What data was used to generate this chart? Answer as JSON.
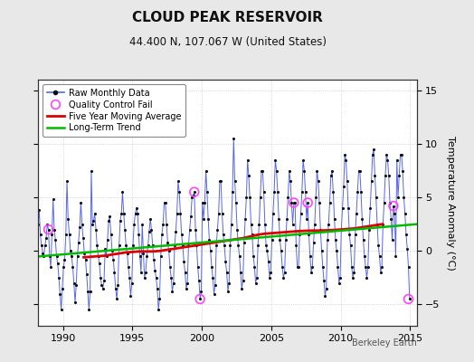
{
  "title": "CLOUD PEAK RESERVOIR",
  "subtitle": "44.400 N, 107.067 W (United States)",
  "ylabel_right": "Temperature Anomaly (°C)",
  "watermark": "Berkeley Earth",
  "xlim": [
    1988.2,
    2015.5
  ],
  "ylim": [
    -7,
    16
  ],
  "yticks": [
    -5,
    0,
    5,
    10,
    15
  ],
  "xticks": [
    1990,
    1995,
    2000,
    2005,
    2010,
    2015
  ],
  "bg_color": "#e8e8e8",
  "plot_bg_color": "#ffffff",
  "raw_color": "#5566ee",
  "raw_marker_color": "#111111",
  "qc_color": "#ff44ff",
  "moving_avg_color": "#dd0000",
  "trend_color": "#00bb00",
  "raw_monthly": [
    [
      1988.042,
      2.8
    ],
    [
      1988.125,
      1.8
    ],
    [
      1988.208,
      2.5
    ],
    [
      1988.292,
      3.8
    ],
    [
      1988.375,
      1.5
    ],
    [
      1988.458,
      0.5
    ],
    [
      1988.542,
      -0.2
    ],
    [
      1988.625,
      -0.5
    ],
    [
      1988.708,
      0.5
    ],
    [
      1988.792,
      1.2
    ],
    [
      1988.875,
      2.5
    ],
    [
      1988.958,
      2.0
    ],
    [
      1989.042,
      -0.5
    ],
    [
      1989.125,
      -1.5
    ],
    [
      1989.208,
      1.5
    ],
    [
      1989.292,
      4.8
    ],
    [
      1989.375,
      2.0
    ],
    [
      1989.458,
      1.0
    ],
    [
      1989.542,
      -0.5
    ],
    [
      1989.625,
      -1.2
    ],
    [
      1989.708,
      -2.5
    ],
    [
      1989.792,
      -4.0
    ],
    [
      1989.875,
      -5.5
    ],
    [
      1989.958,
      -3.5
    ],
    [
      1990.042,
      -1.5
    ],
    [
      1990.125,
      -0.8
    ],
    [
      1990.208,
      1.5
    ],
    [
      1990.292,
      6.5
    ],
    [
      1990.375,
      3.0
    ],
    [
      1990.458,
      1.5
    ],
    [
      1990.542,
      0.0
    ],
    [
      1990.625,
      -0.5
    ],
    [
      1990.708,
      -1.5
    ],
    [
      1990.792,
      -3.0
    ],
    [
      1990.875,
      -4.8
    ],
    [
      1990.958,
      -3.2
    ],
    [
      1991.042,
      -0.5
    ],
    [
      1991.125,
      0.8
    ],
    [
      1991.208,
      2.2
    ],
    [
      1991.292,
      4.5
    ],
    [
      1991.375,
      2.5
    ],
    [
      1991.458,
      1.2
    ],
    [
      1991.542,
      -0.2
    ],
    [
      1991.625,
      -0.8
    ],
    [
      1991.708,
      -2.2
    ],
    [
      1991.792,
      -3.8
    ],
    [
      1991.875,
      -5.5
    ],
    [
      1991.958,
      -3.8
    ],
    [
      1992.042,
      7.5
    ],
    [
      1992.125,
      2.5
    ],
    [
      1992.208,
      2.8
    ],
    [
      1992.292,
      3.5
    ],
    [
      1992.375,
      2.0
    ],
    [
      1992.458,
      0.5
    ],
    [
      1992.542,
      -0.5
    ],
    [
      1992.625,
      -1.2
    ],
    [
      1992.708,
      -2.5
    ],
    [
      1992.792,
      -3.2
    ],
    [
      1992.875,
      -3.5
    ],
    [
      1992.958,
      -2.8
    ],
    [
      1993.042,
      0.2
    ],
    [
      1993.125,
      -0.5
    ],
    [
      1993.208,
      1.0
    ],
    [
      1993.292,
      2.8
    ],
    [
      1993.375,
      3.2
    ],
    [
      1993.458,
      1.5
    ],
    [
      1993.542,
      0.0
    ],
    [
      1993.625,
      -0.8
    ],
    [
      1993.708,
      -2.0
    ],
    [
      1993.792,
      -3.5
    ],
    [
      1993.875,
      -4.5
    ],
    [
      1993.958,
      -3.2
    ],
    [
      1994.042,
      0.5
    ],
    [
      1994.125,
      2.8
    ],
    [
      1994.208,
      3.5
    ],
    [
      1994.292,
      5.5
    ],
    [
      1994.375,
      3.5
    ],
    [
      1994.458,
      2.0
    ],
    [
      1994.542,
      0.5
    ],
    [
      1994.625,
      -0.2
    ],
    [
      1994.708,
      -1.5
    ],
    [
      1994.792,
      -2.5
    ],
    [
      1994.875,
      -4.2
    ],
    [
      1994.958,
      -3.0
    ],
    [
      1995.042,
      0.5
    ],
    [
      1995.125,
      2.5
    ],
    [
      1995.208,
      3.5
    ],
    [
      1995.292,
      4.0
    ],
    [
      1995.375,
      3.5
    ],
    [
      1995.458,
      1.5
    ],
    [
      1995.542,
      -0.5
    ],
    [
      1995.625,
      -2.0
    ],
    [
      1995.708,
      2.5
    ],
    [
      1995.792,
      -0.2
    ],
    [
      1995.875,
      -2.5
    ],
    [
      1995.958,
      -2.0
    ],
    [
      1996.042,
      -0.5
    ],
    [
      1996.125,
      0.5
    ],
    [
      1996.208,
      1.8
    ],
    [
      1996.292,
      3.0
    ],
    [
      1996.375,
      2.0
    ],
    [
      1996.458,
      0.5
    ],
    [
      1996.542,
      -0.8
    ],
    [
      1996.625,
      -1.8
    ],
    [
      1996.708,
      -2.5
    ],
    [
      1996.792,
      -3.5
    ],
    [
      1996.875,
      -5.5
    ],
    [
      1996.958,
      -4.5
    ],
    [
      1997.042,
      -0.5
    ],
    [
      1997.125,
      1.5
    ],
    [
      1997.208,
      2.5
    ],
    [
      1997.292,
      4.5
    ],
    [
      1997.375,
      4.5
    ],
    [
      1997.458,
      2.5
    ],
    [
      1997.542,
      0.8
    ],
    [
      1997.625,
      0.0
    ],
    [
      1997.708,
      -1.5
    ],
    [
      1997.792,
      -2.5
    ],
    [
      1997.875,
      -3.8
    ],
    [
      1997.958,
      -3.0
    ],
    [
      1998.042,
      0.5
    ],
    [
      1998.125,
      1.8
    ],
    [
      1998.208,
      3.5
    ],
    [
      1998.292,
      6.5
    ],
    [
      1998.375,
      5.5
    ],
    [
      1998.458,
      3.5
    ],
    [
      1998.542,
      1.5
    ],
    [
      1998.625,
      0.5
    ],
    [
      1998.708,
      -1.0
    ],
    [
      1998.792,
      -2.0
    ],
    [
      1998.875,
      -3.5
    ],
    [
      1998.958,
      -3.0
    ],
    [
      1999.042,
      0.5
    ],
    [
      1999.125,
      2.0
    ],
    [
      1999.208,
      3.2
    ],
    [
      1999.292,
      5.0
    ],
    [
      1999.375,
      5.2
    ],
    [
      1999.458,
      5.5
    ],
    [
      1999.542,
      2.0
    ],
    [
      1999.625,
      0.5
    ],
    [
      1999.708,
      -1.5
    ],
    [
      1999.792,
      -2.8
    ],
    [
      1999.875,
      -4.5
    ],
    [
      1999.958,
      -3.8
    ],
    [
      2000.042,
      4.5
    ],
    [
      2000.125,
      3.0
    ],
    [
      2000.208,
      4.5
    ],
    [
      2000.292,
      7.5
    ],
    [
      2000.375,
      5.5
    ],
    [
      2000.458,
      3.0
    ],
    [
      2000.542,
      1.0
    ],
    [
      2000.625,
      0.0
    ],
    [
      2000.708,
      -1.5
    ],
    [
      2000.792,
      -2.5
    ],
    [
      2000.875,
      -4.0
    ],
    [
      2000.958,
      -3.2
    ],
    [
      2001.042,
      0.5
    ],
    [
      2001.125,
      2.0
    ],
    [
      2001.208,
      3.5
    ],
    [
      2001.292,
      6.5
    ],
    [
      2001.375,
      6.5
    ],
    [
      2001.458,
      3.5
    ],
    [
      2001.542,
      1.5
    ],
    [
      2001.625,
      0.5
    ],
    [
      2001.708,
      -1.0
    ],
    [
      2001.792,
      -2.0
    ],
    [
      2001.875,
      -3.8
    ],
    [
      2001.958,
      -3.0
    ],
    [
      2002.042,
      0.5
    ],
    [
      2002.125,
      2.5
    ],
    [
      2002.208,
      5.5
    ],
    [
      2002.292,
      10.5
    ],
    [
      2002.375,
      6.5
    ],
    [
      2002.458,
      4.5
    ],
    [
      2002.542,
      2.0
    ],
    [
      2002.625,
      0.5
    ],
    [
      2002.708,
      -0.5
    ],
    [
      2002.792,
      -2.0
    ],
    [
      2002.875,
      -3.5
    ],
    [
      2002.958,
      -2.8
    ],
    [
      2003.042,
      0.8
    ],
    [
      2003.125,
      3.0
    ],
    [
      2003.208,
      5.0
    ],
    [
      2003.292,
      8.5
    ],
    [
      2003.375,
      7.0
    ],
    [
      2003.458,
      5.0
    ],
    [
      2003.542,
      2.5
    ],
    [
      2003.625,
      1.5
    ],
    [
      2003.708,
      -0.5
    ],
    [
      2003.792,
      -1.5
    ],
    [
      2003.875,
      -3.0
    ],
    [
      2003.958,
      -2.5
    ],
    [
      2004.042,
      0.5
    ],
    [
      2004.125,
      2.5
    ],
    [
      2004.208,
      5.0
    ],
    [
      2004.292,
      7.5
    ],
    [
      2004.375,
      7.5
    ],
    [
      2004.458,
      5.5
    ],
    [
      2004.542,
      2.5
    ],
    [
      2004.625,
      0.5
    ],
    [
      2004.708,
      0.0
    ],
    [
      2004.792,
      -1.0
    ],
    [
      2004.875,
      -2.5
    ],
    [
      2004.958,
      -2.0
    ],
    [
      2005.042,
      1.0
    ],
    [
      2005.125,
      3.5
    ],
    [
      2005.208,
      5.5
    ],
    [
      2005.292,
      8.5
    ],
    [
      2005.375,
      7.5
    ],
    [
      2005.458,
      5.5
    ],
    [
      2005.542,
      3.0
    ],
    [
      2005.625,
      1.0
    ],
    [
      2005.708,
      0.0
    ],
    [
      2005.792,
      -1.5
    ],
    [
      2005.875,
      -2.5
    ],
    [
      2005.958,
      -2.0
    ],
    [
      2006.042,
      1.0
    ],
    [
      2006.125,
      3.0
    ],
    [
      2006.208,
      5.0
    ],
    [
      2006.292,
      7.5
    ],
    [
      2006.375,
      6.5
    ],
    [
      2006.458,
      4.5
    ],
    [
      2006.542,
      2.5
    ],
    [
      2006.625,
      4.5
    ],
    [
      2006.708,
      4.5
    ],
    [
      2006.792,
      0.5
    ],
    [
      2006.875,
      -1.5
    ],
    [
      2006.958,
      -1.5
    ],
    [
      2007.042,
      1.5
    ],
    [
      2007.125,
      3.5
    ],
    [
      2007.208,
      5.5
    ],
    [
      2007.292,
      8.5
    ],
    [
      2007.375,
      7.5
    ],
    [
      2007.458,
      5.5
    ],
    [
      2007.542,
      3.0
    ],
    [
      2007.625,
      4.5
    ],
    [
      2007.708,
      1.5
    ],
    [
      2007.792,
      -0.5
    ],
    [
      2007.875,
      -2.0
    ],
    [
      2007.958,
      -1.5
    ],
    [
      2008.042,
      0.8
    ],
    [
      2008.125,
      2.5
    ],
    [
      2008.208,
      5.0
    ],
    [
      2008.292,
      7.5
    ],
    [
      2008.375,
      6.5
    ],
    [
      2008.458,
      4.5
    ],
    [
      2008.542,
      2.0
    ],
    [
      2008.625,
      0.0
    ],
    [
      2008.708,
      -1.5
    ],
    [
      2008.792,
      -2.8
    ],
    [
      2008.875,
      -4.2
    ],
    [
      2008.958,
      -3.5
    ],
    [
      2009.042,
      1.0
    ],
    [
      2009.125,
      2.5
    ],
    [
      2009.208,
      4.5
    ],
    [
      2009.292,
      7.0
    ],
    [
      2009.375,
      7.5
    ],
    [
      2009.458,
      5.5
    ],
    [
      2009.542,
      3.0
    ],
    [
      2009.625,
      1.0
    ],
    [
      2009.708,
      0.0
    ],
    [
      2009.792,
      -1.5
    ],
    [
      2009.875,
      -3.0
    ],
    [
      2009.958,
      -2.5
    ],
    [
      2010.042,
      2.0
    ],
    [
      2010.125,
      4.0
    ],
    [
      2010.208,
      6.0
    ],
    [
      2010.292,
      9.0
    ],
    [
      2010.375,
      8.5
    ],
    [
      2010.458,
      6.5
    ],
    [
      2010.542,
      4.0
    ],
    [
      2010.625,
      1.5
    ],
    [
      2010.708,
      0.5
    ],
    [
      2010.792,
      -1.5
    ],
    [
      2010.875,
      -2.5
    ],
    [
      2010.958,
      -2.0
    ],
    [
      2011.042,
      1.5
    ],
    [
      2011.125,
      3.5
    ],
    [
      2011.208,
      5.5
    ],
    [
      2011.292,
      7.5
    ],
    [
      2011.375,
      7.5
    ],
    [
      2011.458,
      5.5
    ],
    [
      2011.542,
      3.0
    ],
    [
      2011.625,
      1.0
    ],
    [
      2011.708,
      -0.5
    ],
    [
      2011.792,
      -1.5
    ],
    [
      2011.875,
      -2.5
    ],
    [
      2011.958,
      -1.5
    ],
    [
      2012.042,
      2.0
    ],
    [
      2012.125,
      4.0
    ],
    [
      2012.208,
      6.5
    ],
    [
      2012.292,
      9.0
    ],
    [
      2012.375,
      9.5
    ],
    [
      2012.458,
      7.0
    ],
    [
      2012.542,
      5.0
    ],
    [
      2012.625,
      2.5
    ],
    [
      2012.708,
      0.5
    ],
    [
      2012.792,
      -0.5
    ],
    [
      2012.875,
      -2.0
    ],
    [
      2012.958,
      -1.5
    ],
    [
      2013.042,
      2.5
    ],
    [
      2013.125,
      4.5
    ],
    [
      2013.208,
      7.0
    ],
    [
      2013.292,
      9.0
    ],
    [
      2013.375,
      8.5
    ],
    [
      2013.458,
      7.0
    ],
    [
      2013.542,
      4.5
    ],
    [
      2013.625,
      3.0
    ],
    [
      2013.708,
      1.0
    ],
    [
      2013.792,
      4.2
    ],
    [
      2013.875,
      3.5
    ],
    [
      2013.958,
      -0.5
    ],
    [
      2014.042,
      8.5
    ],
    [
      2014.125,
      5.0
    ],
    [
      2014.208,
      7.0
    ],
    [
      2014.292,
      9.0
    ],
    [
      2014.375,
      9.0
    ],
    [
      2014.458,
      7.5
    ],
    [
      2014.542,
      5.0
    ],
    [
      2014.625,
      3.5
    ],
    [
      2014.708,
      1.5
    ],
    [
      2014.792,
      0.2
    ],
    [
      2014.875,
      -1.5
    ],
    [
      2014.958,
      -4.5
    ]
  ],
  "qc_fail_points": [
    [
      1988.958,
      2.0
    ],
    [
      1999.458,
      5.5
    ],
    [
      1999.875,
      -4.5
    ],
    [
      2006.625,
      4.5
    ],
    [
      2007.625,
      4.5
    ],
    [
      2013.792,
      4.2
    ],
    [
      2014.875,
      -4.5
    ]
  ],
  "moving_avg": [
    [
      1991.5,
      -0.6
    ],
    [
      1992.0,
      -0.55
    ],
    [
      1992.5,
      -0.5
    ],
    [
      1993.0,
      -0.45
    ],
    [
      1993.5,
      -0.35
    ],
    [
      1994.0,
      -0.25
    ],
    [
      1994.5,
      -0.15
    ],
    [
      1995.0,
      -0.1
    ],
    [
      1995.5,
      -0.05
    ],
    [
      1996.0,
      -0.05
    ],
    [
      1996.5,
      -0.05
    ],
    [
      1997.0,
      0.0
    ],
    [
      1997.5,
      0.1
    ],
    [
      1998.0,
      0.2
    ],
    [
      1998.5,
      0.3
    ],
    [
      1999.0,
      0.4
    ],
    [
      1999.5,
      0.5
    ],
    [
      2000.0,
      0.6
    ],
    [
      2000.5,
      0.7
    ],
    [
      2001.0,
      0.8
    ],
    [
      2001.5,
      0.9
    ],
    [
      2002.0,
      1.0
    ],
    [
      2002.5,
      1.1
    ],
    [
      2003.0,
      1.2
    ],
    [
      2003.5,
      1.35
    ],
    [
      2004.0,
      1.5
    ],
    [
      2004.5,
      1.6
    ],
    [
      2005.0,
      1.65
    ],
    [
      2005.5,
      1.7
    ],
    [
      2006.0,
      1.75
    ],
    [
      2006.5,
      1.8
    ],
    [
      2007.0,
      1.85
    ],
    [
      2007.5,
      1.88
    ],
    [
      2008.0,
      1.9
    ],
    [
      2008.5,
      1.9
    ],
    [
      2009.0,
      1.92
    ],
    [
      2009.5,
      1.95
    ],
    [
      2010.0,
      2.0
    ],
    [
      2010.5,
      2.05
    ],
    [
      2011.0,
      2.1
    ],
    [
      2011.5,
      2.2
    ],
    [
      2012.0,
      2.3
    ],
    [
      2012.5,
      2.4
    ],
    [
      2013.0,
      2.5
    ]
  ],
  "trend_x": [
    1988.0,
    2015.5
  ],
  "trend_y": [
    -0.55,
    2.5
  ],
  "legend_labels": [
    "Raw Monthly Data",
    "Quality Control Fail",
    "Five Year Moving Average",
    "Long-Term Trend"
  ]
}
